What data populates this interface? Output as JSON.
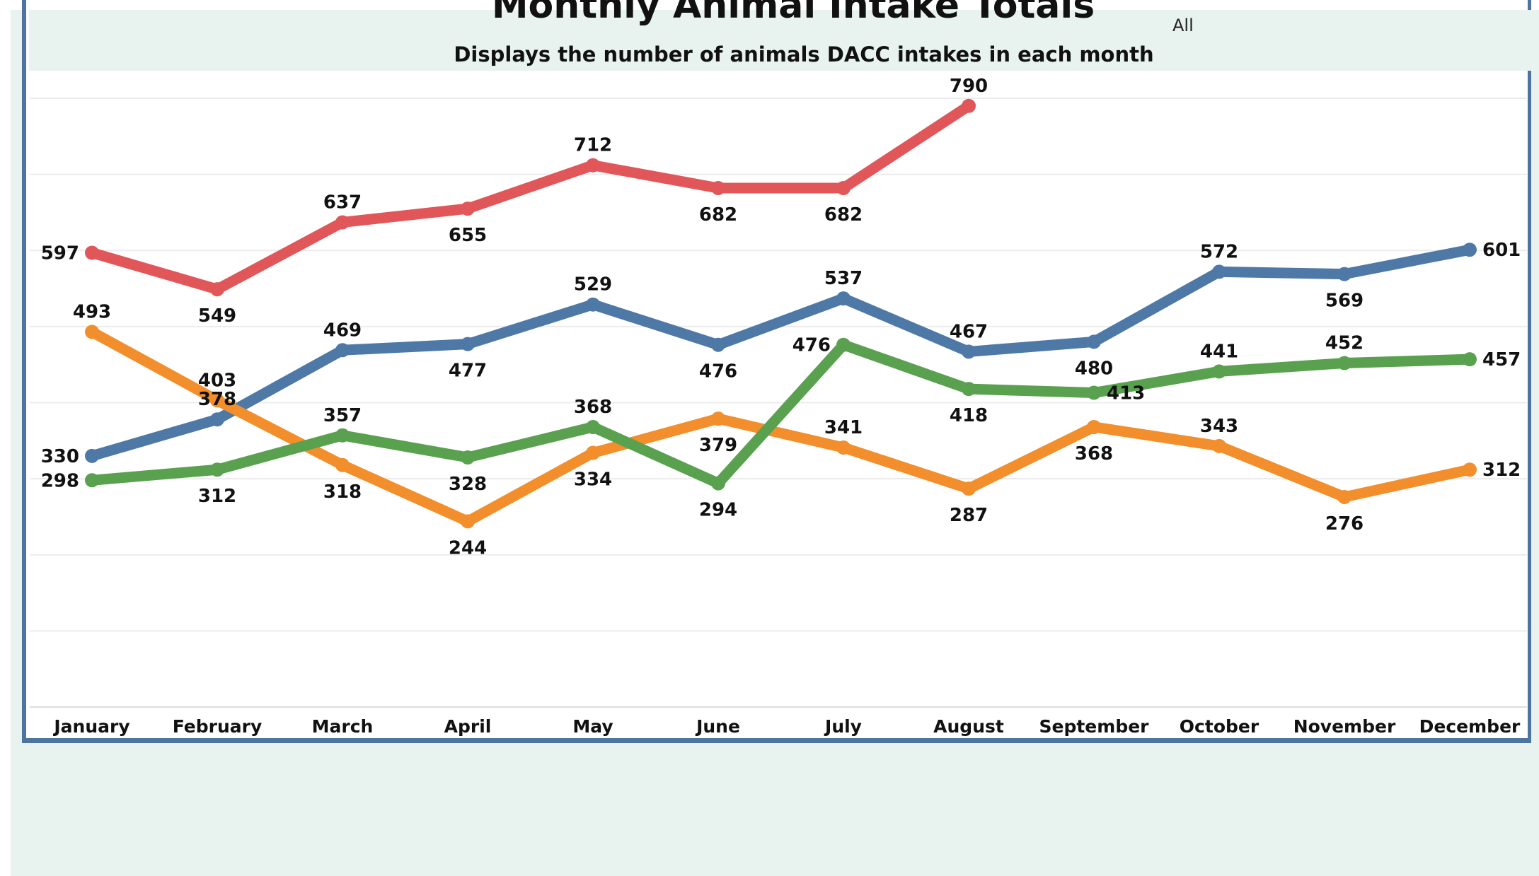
{
  "title": "Monthly Animal Intake Totals",
  "subtitle": "Displays the number of animals DACC intakes in each month",
  "filter_value": "All",
  "colors": {
    "background": "#e8f2ef",
    "frame": "#4e74a0",
    "grid": "#ececec",
    "red": "#e15759",
    "blue": "#4e79a7",
    "orange": "#f28e2b",
    "green": "#59a14f"
  },
  "chart_data": {
    "type": "line",
    "title": "Monthly Animal Intake Totals",
    "subtitle": "Displays the number of animals DACC intakes in each month",
    "xlabel": "",
    "ylabel": "",
    "ylim": [
      0,
      800
    ],
    "grid": true,
    "categories": [
      "January",
      "February",
      "March",
      "April",
      "May",
      "June",
      "July",
      "August",
      "September",
      "October",
      "November",
      "December"
    ],
    "series": [
      {
        "color": "#e15759",
        "values": [
          597,
          549,
          637,
          655,
          712,
          682,
          682,
          790,
          null,
          null,
          null,
          null
        ],
        "labels": [
          "597",
          "549",
          "637",
          "655",
          "712",
          "682",
          "682",
          "790",
          "",
          "",
          "",
          ""
        ]
      },
      {
        "color": "#4e79a7",
        "values": [
          330,
          378,
          469,
          477,
          529,
          476,
          537,
          467,
          480,
          572,
          569,
          601
        ],
        "labels": [
          "330",
          "378",
          "469",
          "477",
          "529",
          "476",
          "537",
          "467",
          "480",
          "572",
          "569",
          "601"
        ]
      },
      {
        "color": "#f28e2b",
        "values": [
          493,
          403,
          318,
          244,
          334,
          379,
          341,
          287,
          368,
          343,
          276,
          312
        ],
        "labels": [
          "493",
          "403",
          "318",
          "244",
          "334",
          "379",
          "341",
          "287",
          "368",
          "343",
          "276",
          "312"
        ]
      },
      {
        "color": "#59a14f",
        "values": [
          298,
          312,
          357,
          328,
          368,
          294,
          476,
          418,
          413,
          441,
          452,
          457
        ],
        "labels": [
          "298",
          "312",
          "357",
          "328",
          "368",
          "294",
          "476",
          "418",
          "413",
          "441",
          "452",
          "457"
        ]
      }
    ]
  }
}
